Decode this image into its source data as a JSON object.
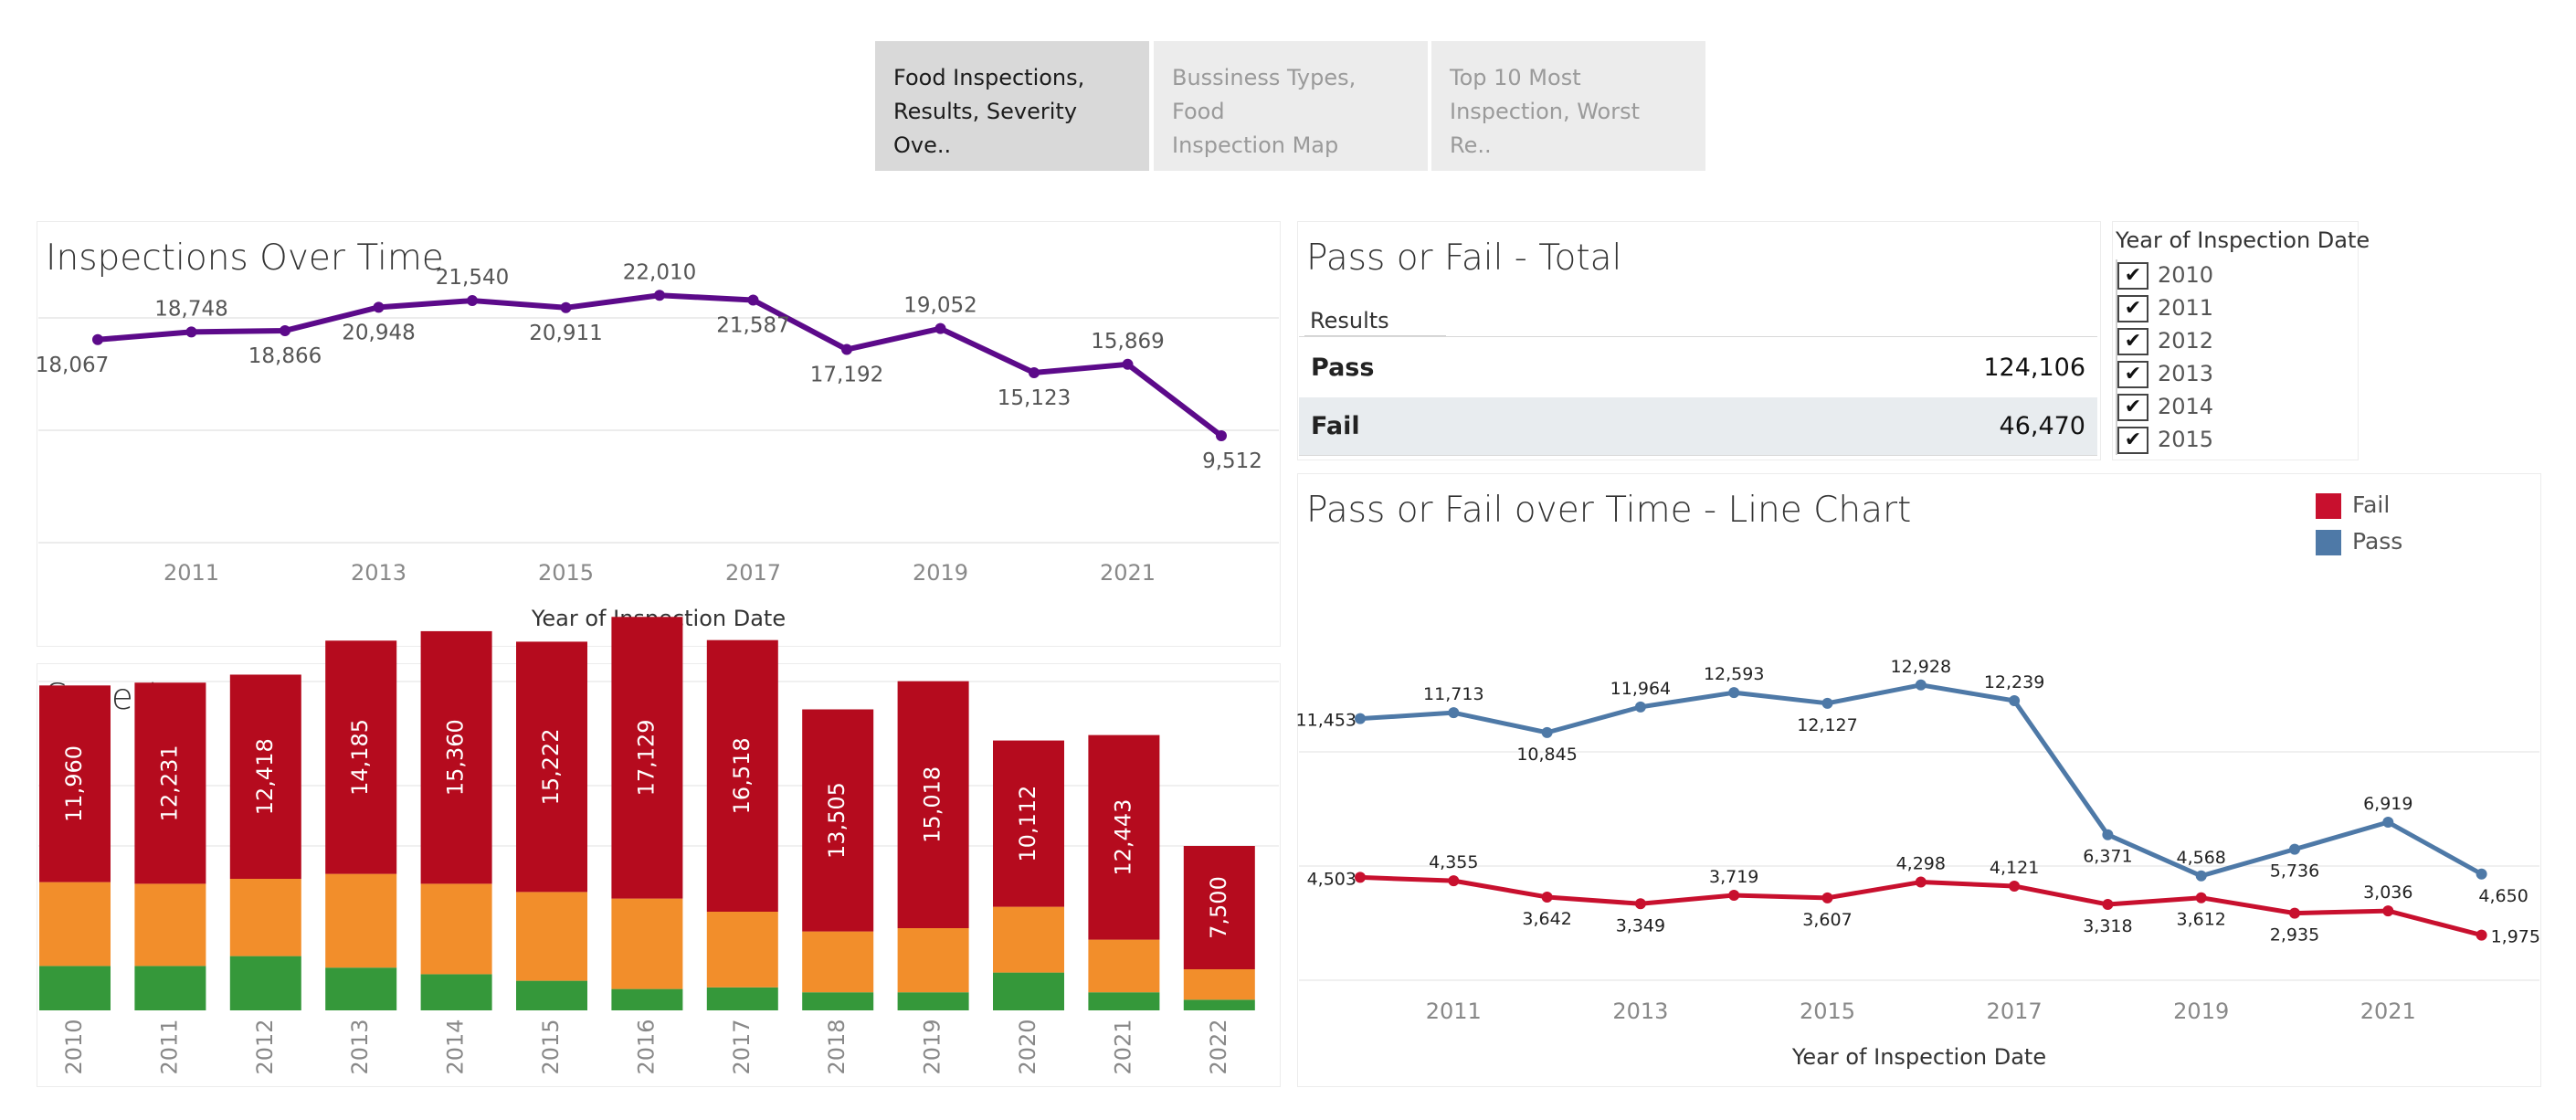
{
  "tabs": [
    {
      "line1": "Food Inspections,",
      "line2": "Results, Severity Ove..",
      "active": true
    },
    {
      "line1": "Bussiness Types, Food",
      "line2": "Inspection Map",
      "active": false
    },
    {
      "line1": "Top 10 Most",
      "line2": "Inspection, Worst Re..",
      "active": false
    }
  ],
  "panels": {
    "inspections_title": "Inspections Over Time",
    "severity_title": "Severity",
    "passfail_total_title": "Pass or Fail - Total",
    "passfail_line_title": "Pass or Fail over Time - Line Chart"
  },
  "pass_fail_total": {
    "header": "Results",
    "rows": [
      {
        "label": "Pass",
        "value": "124,106"
      },
      {
        "label": "Fail",
        "value": "46,470"
      }
    ]
  },
  "filter": {
    "title": "Year of Inspection Date",
    "items": [
      {
        "label": "2010",
        "checked": true
      },
      {
        "label": "2011",
        "checked": true
      },
      {
        "label": "2012",
        "checked": true
      },
      {
        "label": "2013",
        "checked": true
      },
      {
        "label": "2014",
        "checked": true
      },
      {
        "label": "2015",
        "checked": true
      }
    ]
  },
  "legend": [
    {
      "label": "Fail",
      "color": "#c8102e"
    },
    {
      "label": "Pass",
      "color": "#4e79a7"
    }
  ],
  "colors": {
    "inspections_line": "#5c0a8a",
    "severity_high": "#b50b1e",
    "severity_medium": "#f28e2b",
    "severity_low": "#35983a",
    "fail": "#c8102e",
    "pass": "#4e79a7"
  },
  "chart_data": [
    {
      "type": "line",
      "title": "Inspections Over Time",
      "xlabel": "Year of Inspection Date",
      "ylabel": "",
      "x": [
        2010,
        2011,
        2012,
        2013,
        2014,
        2015,
        2016,
        2017,
        2018,
        2019,
        2020,
        2021,
        2022
      ],
      "x_tick_labels": [
        "2011",
        "2013",
        "2015",
        "2017",
        "2019",
        "2021"
      ],
      "values": [
        18067,
        18748,
        18866,
        20948,
        21540,
        20911,
        22010,
        21587,
        17192,
        19052,
        15123,
        15869,
        9512
      ],
      "labels": [
        "18,067",
        "18,748",
        "18,866",
        "20,948",
        "21,540",
        "20,911",
        "22,010",
        "21,587",
        "17,192",
        "19,052",
        "15,123",
        "15,869",
        "9,512"
      ],
      "ylim": [
        0,
        30000
      ],
      "grid": true
    },
    {
      "type": "bar",
      "title": "Severity",
      "stacked": true,
      "categories": [
        "2010",
        "2011",
        "2012",
        "2013",
        "2014",
        "2015",
        "2016",
        "2017",
        "2018",
        "2019",
        "2020",
        "2021",
        "2022"
      ],
      "series": [
        {
          "values": [
            2700,
            2700,
            3300,
            2600,
            2200,
            1800,
            1300,
            1400,
            1100,
            1100,
            2300,
            1100,
            650
          ],
          "color": "#35983a"
        },
        {
          "values": [
            5100,
            5000,
            4700,
            5700,
            5500,
            5400,
            5500,
            4600,
            3700,
            3900,
            4000,
            3200,
            1850
          ],
          "color": "#f28e2b"
        },
        {
          "values": [
            11960,
            12231,
            12418,
            14185,
            15360,
            15222,
            17129,
            16518,
            13505,
            15018,
            10112,
            12443,
            7500
          ],
          "color": "#b50b1e",
          "labels": [
            "11,960",
            "12,231",
            "12,418",
            "14,185",
            "15,360",
            "15,222",
            "17,129",
            "16,518",
            "13,505",
            "15,018",
            "10,112",
            "12,443",
            "7,500"
          ]
        }
      ],
      "ylim": [
        0,
        30000
      ],
      "grid": true
    },
    {
      "type": "line",
      "title": "Pass or Fail over Time - Line Chart",
      "xlabel": "Year of Inspection Date",
      "ylabel": "",
      "x": [
        2010,
        2011,
        2012,
        2013,
        2014,
        2015,
        2016,
        2017,
        2018,
        2019,
        2020,
        2021,
        2022
      ],
      "x_tick_labels": [
        "2011",
        "2013",
        "2015",
        "2017",
        "2019",
        "2021"
      ],
      "series": [
        {
          "name": "Pass",
          "color": "#4e79a7",
          "values": [
            11453,
            11713,
            10845,
            11964,
            12593,
            12127,
            12928,
            12239,
            6371,
            4568,
            5736,
            6919,
            4650
          ],
          "labels": [
            "11,453",
            "11,713",
            "10,845",
            "11,964",
            "12,593",
            "12,127",
            "12,928",
            "12,239",
            "6,371",
            "4,568",
            "5,736",
            "6,919",
            "4,650"
          ]
        },
        {
          "name": "Fail",
          "color": "#c8102e",
          "values": [
            4503,
            4355,
            3642,
            3349,
            3719,
            3607,
            4298,
            4121,
            3318,
            3612,
            2935,
            3036,
            1975
          ],
          "labels": [
            "4,503",
            "4,355",
            "3,642",
            "3,349",
            "3,719",
            "3,607",
            "4,298",
            "4,121",
            "3,318",
            "3,612",
            "2,935",
            "3,036",
            "1,975"
          ]
        }
      ],
      "ylim": [
        0,
        15000
      ],
      "legend": "top-right",
      "grid": true
    }
  ]
}
